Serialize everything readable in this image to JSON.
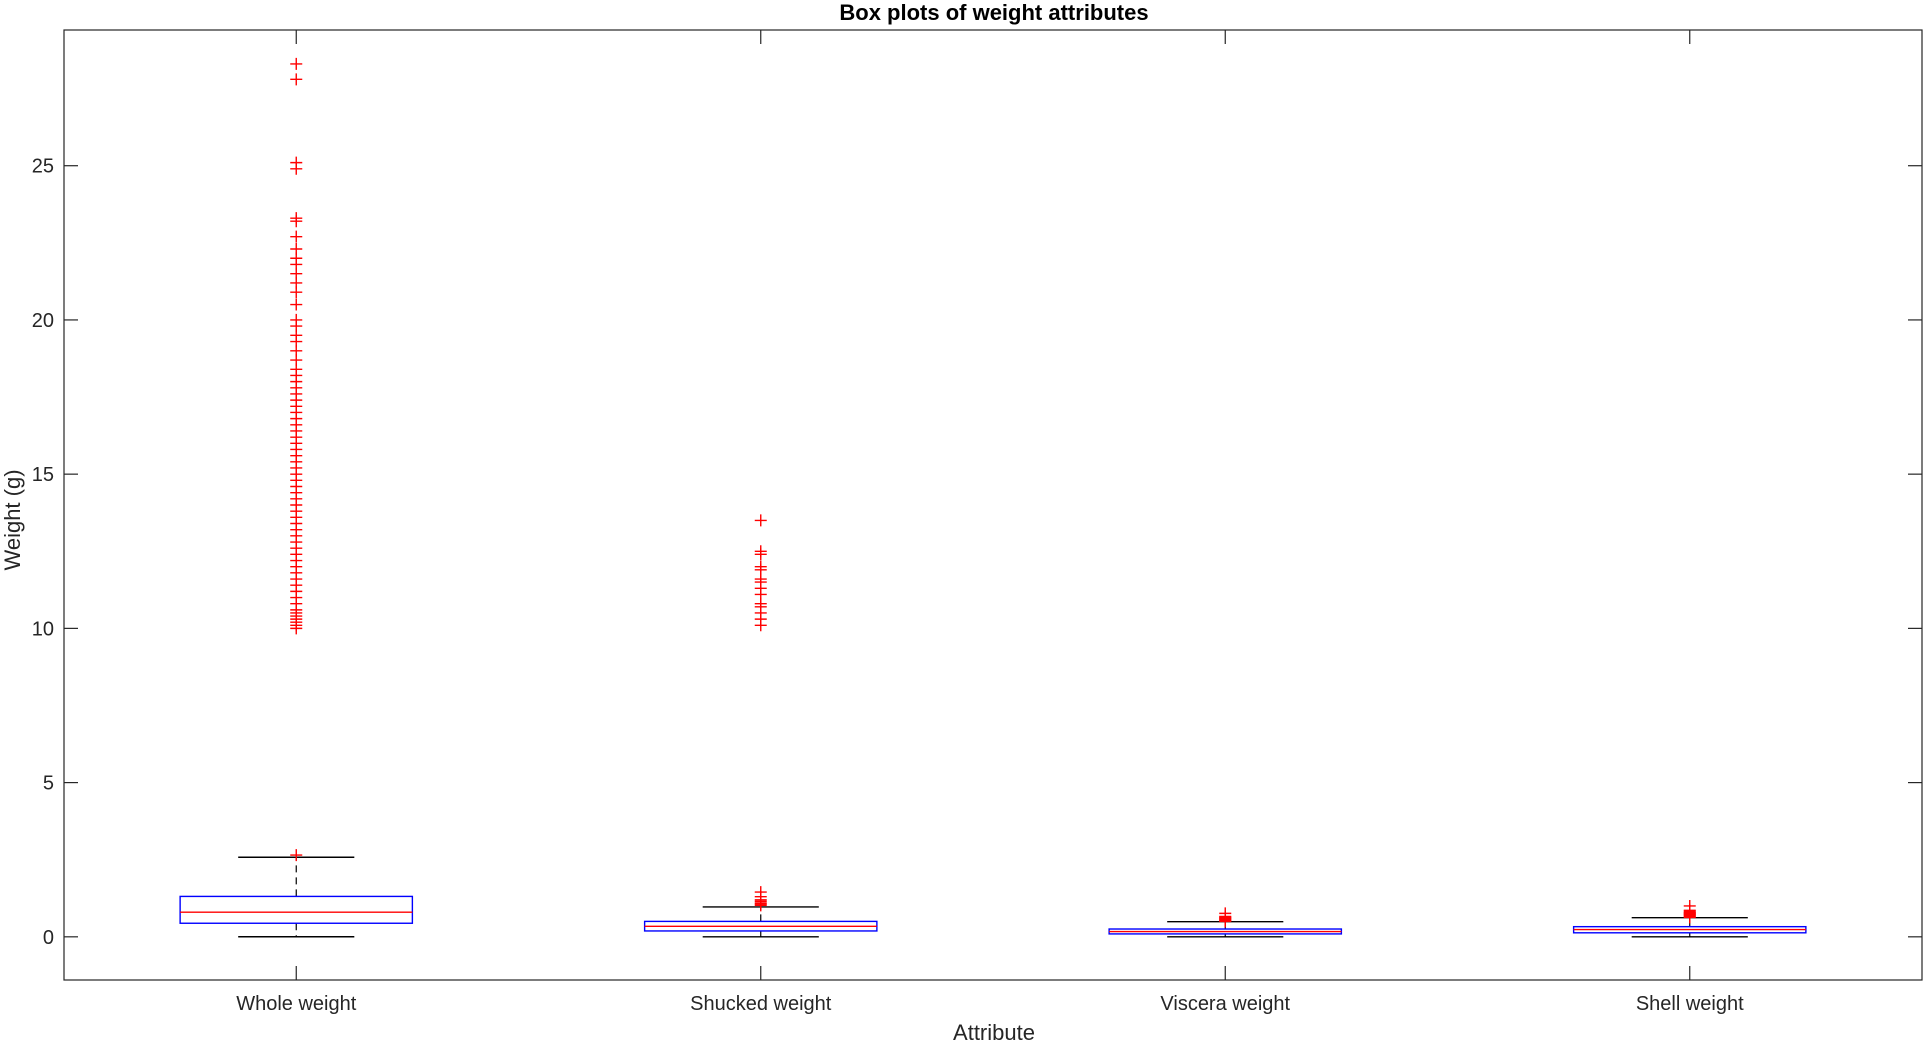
{
  "chart_data": {
    "type": "box",
    "title": "Box plots of weight attributes",
    "xlabel": "Attribute",
    "ylabel": "Weight (g)",
    "ylim": [
      -1.4,
      29.4
    ],
    "yticks": [
      0,
      5,
      10,
      15,
      20,
      25
    ],
    "grid": false,
    "colors": {
      "box": "#0000ff",
      "median": "#ff0000",
      "whisker": "#000000",
      "outlier": "#ff0000",
      "axis": "#262626"
    },
    "categories": [
      "Whole weight",
      "Shucked weight",
      "Viscera weight",
      "Shell weight"
    ],
    "boxes": [
      {
        "name": "Whole weight",
        "whisker_low": 0.002,
        "q1": 0.44,
        "median": 0.8,
        "q3": 1.31,
        "whisker_high": 2.58,
        "outliers": [
          2.65,
          10.0,
          10.1,
          10.2,
          10.3,
          10.4,
          10.5,
          10.6,
          10.8,
          11.0,
          11.2,
          11.4,
          11.6,
          11.8,
          12.0,
          12.2,
          12.4,
          12.6,
          12.8,
          13.0,
          13.2,
          13.4,
          13.6,
          13.8,
          14.0,
          14.2,
          14.4,
          14.6,
          14.8,
          15.0,
          15.2,
          15.4,
          15.6,
          15.8,
          16.0,
          16.2,
          16.4,
          16.6,
          16.8,
          17.0,
          17.2,
          17.4,
          17.6,
          17.8,
          18.0,
          18.2,
          18.4,
          18.7,
          19.0,
          19.3,
          19.5,
          19.8,
          20.0,
          20.5,
          20.9,
          21.2,
          21.5,
          21.8,
          22.0,
          22.3,
          22.7,
          23.2,
          23.3,
          24.9,
          25.1,
          27.8,
          28.3
        ]
      },
      {
        "name": "Shucked weight",
        "whisker_low": 0.001,
        "q1": 0.19,
        "median": 0.34,
        "q3": 0.5,
        "whisker_high": 0.97,
        "outliers": [
          1.02,
          1.06,
          1.1,
          1.15,
          1.2,
          1.3,
          1.45,
          10.1,
          10.3,
          10.5,
          10.7,
          10.8,
          11.1,
          11.3,
          11.5,
          11.6,
          11.9,
          12.0,
          12.4,
          12.5,
          13.5
        ]
      },
      {
        "name": "Viscera weight",
        "whisker_low": 0.0005,
        "q1": 0.094,
        "median": 0.171,
        "q3": 0.253,
        "whisker_high": 0.49,
        "outliers": [
          0.5,
          0.52,
          0.54,
          0.56,
          0.58,
          0.6,
          0.62,
          0.64,
          0.66,
          0.76
        ]
      },
      {
        "name": "Shell weight",
        "whisker_low": 0.0015,
        "q1": 0.13,
        "median": 0.234,
        "q3": 0.329,
        "whisker_high": 0.62,
        "outliers": [
          0.63,
          0.65,
          0.68,
          0.7,
          0.72,
          0.74,
          0.76,
          0.78,
          0.8,
          0.83,
          0.86,
          1.0
        ]
      }
    ]
  }
}
